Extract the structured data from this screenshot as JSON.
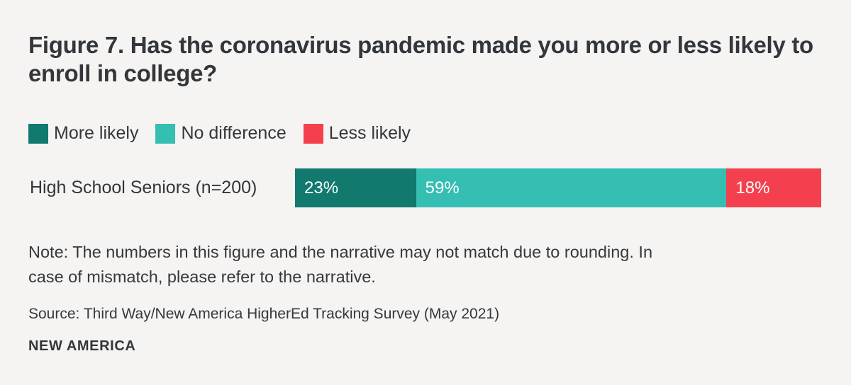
{
  "page": {
    "background": "#F5F4F2",
    "text_color": "#33363A"
  },
  "title": "Figure 7. Has the coronavirus pandemic made you more or less likely to enroll in college?",
  "chart_data": {
    "type": "bar",
    "orientation": "horizontal",
    "stacked": true,
    "categories": [
      "High School Seniors (n=200)"
    ],
    "series": [
      {
        "name": "More likely",
        "values": [
          23
        ],
        "color": "#12796F"
      },
      {
        "name": "No difference",
        "values": [
          59
        ],
        "color": "#35BEB2"
      },
      {
        "name": "Less likely",
        "values": [
          18
        ],
        "color": "#F4404E"
      }
    ],
    "value_labels": [
      "23%",
      "59%",
      "18%"
    ],
    "value_suffix": "%",
    "xlim": [
      0,
      100
    ],
    "legend_position": "top",
    "grid": false
  },
  "note_lines": [
    "Note: The numbers in this figure and the narrative may not match due to rounding. In",
    "case of mismatch, please refer to the narrative."
  ],
  "source": "Source: Third Way/New America HigherEd Tracking Survey (May 2021)",
  "brand": "NEW AMERICA"
}
